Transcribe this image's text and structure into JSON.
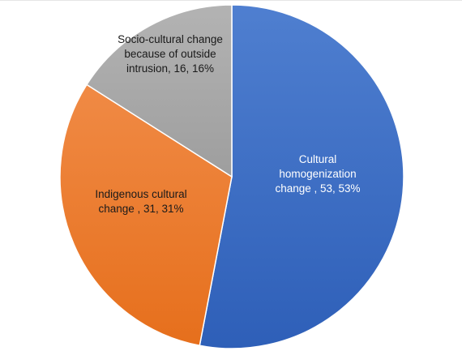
{
  "chart_data": {
    "type": "pie",
    "title": "",
    "slices": [
      {
        "category": "Cultural homogenization change",
        "value": 53,
        "percent": "53%",
        "color": "#4472c4",
        "label_lines": [
          "Cultural",
          "homogenization",
          "change , 53, 53%"
        ]
      },
      {
        "category": "Indigenous cultural change",
        "value": 31,
        "percent": "31%",
        "color": "#ed7d31",
        "label_lines": [
          "Indigenous cultural",
          "change , 31, 31%"
        ]
      },
      {
        "category": "Socio-cultural change because of outside intrusion",
        "value": 16,
        "percent": "16%",
        "color": "#a5a5a5",
        "label_lines": [
          "Socio-cultural change",
          "because of outside",
          "intrusion, 16, 16%"
        ]
      }
    ],
    "start": "12 o'clock",
    "direction": "clockwise",
    "legend": "none"
  }
}
